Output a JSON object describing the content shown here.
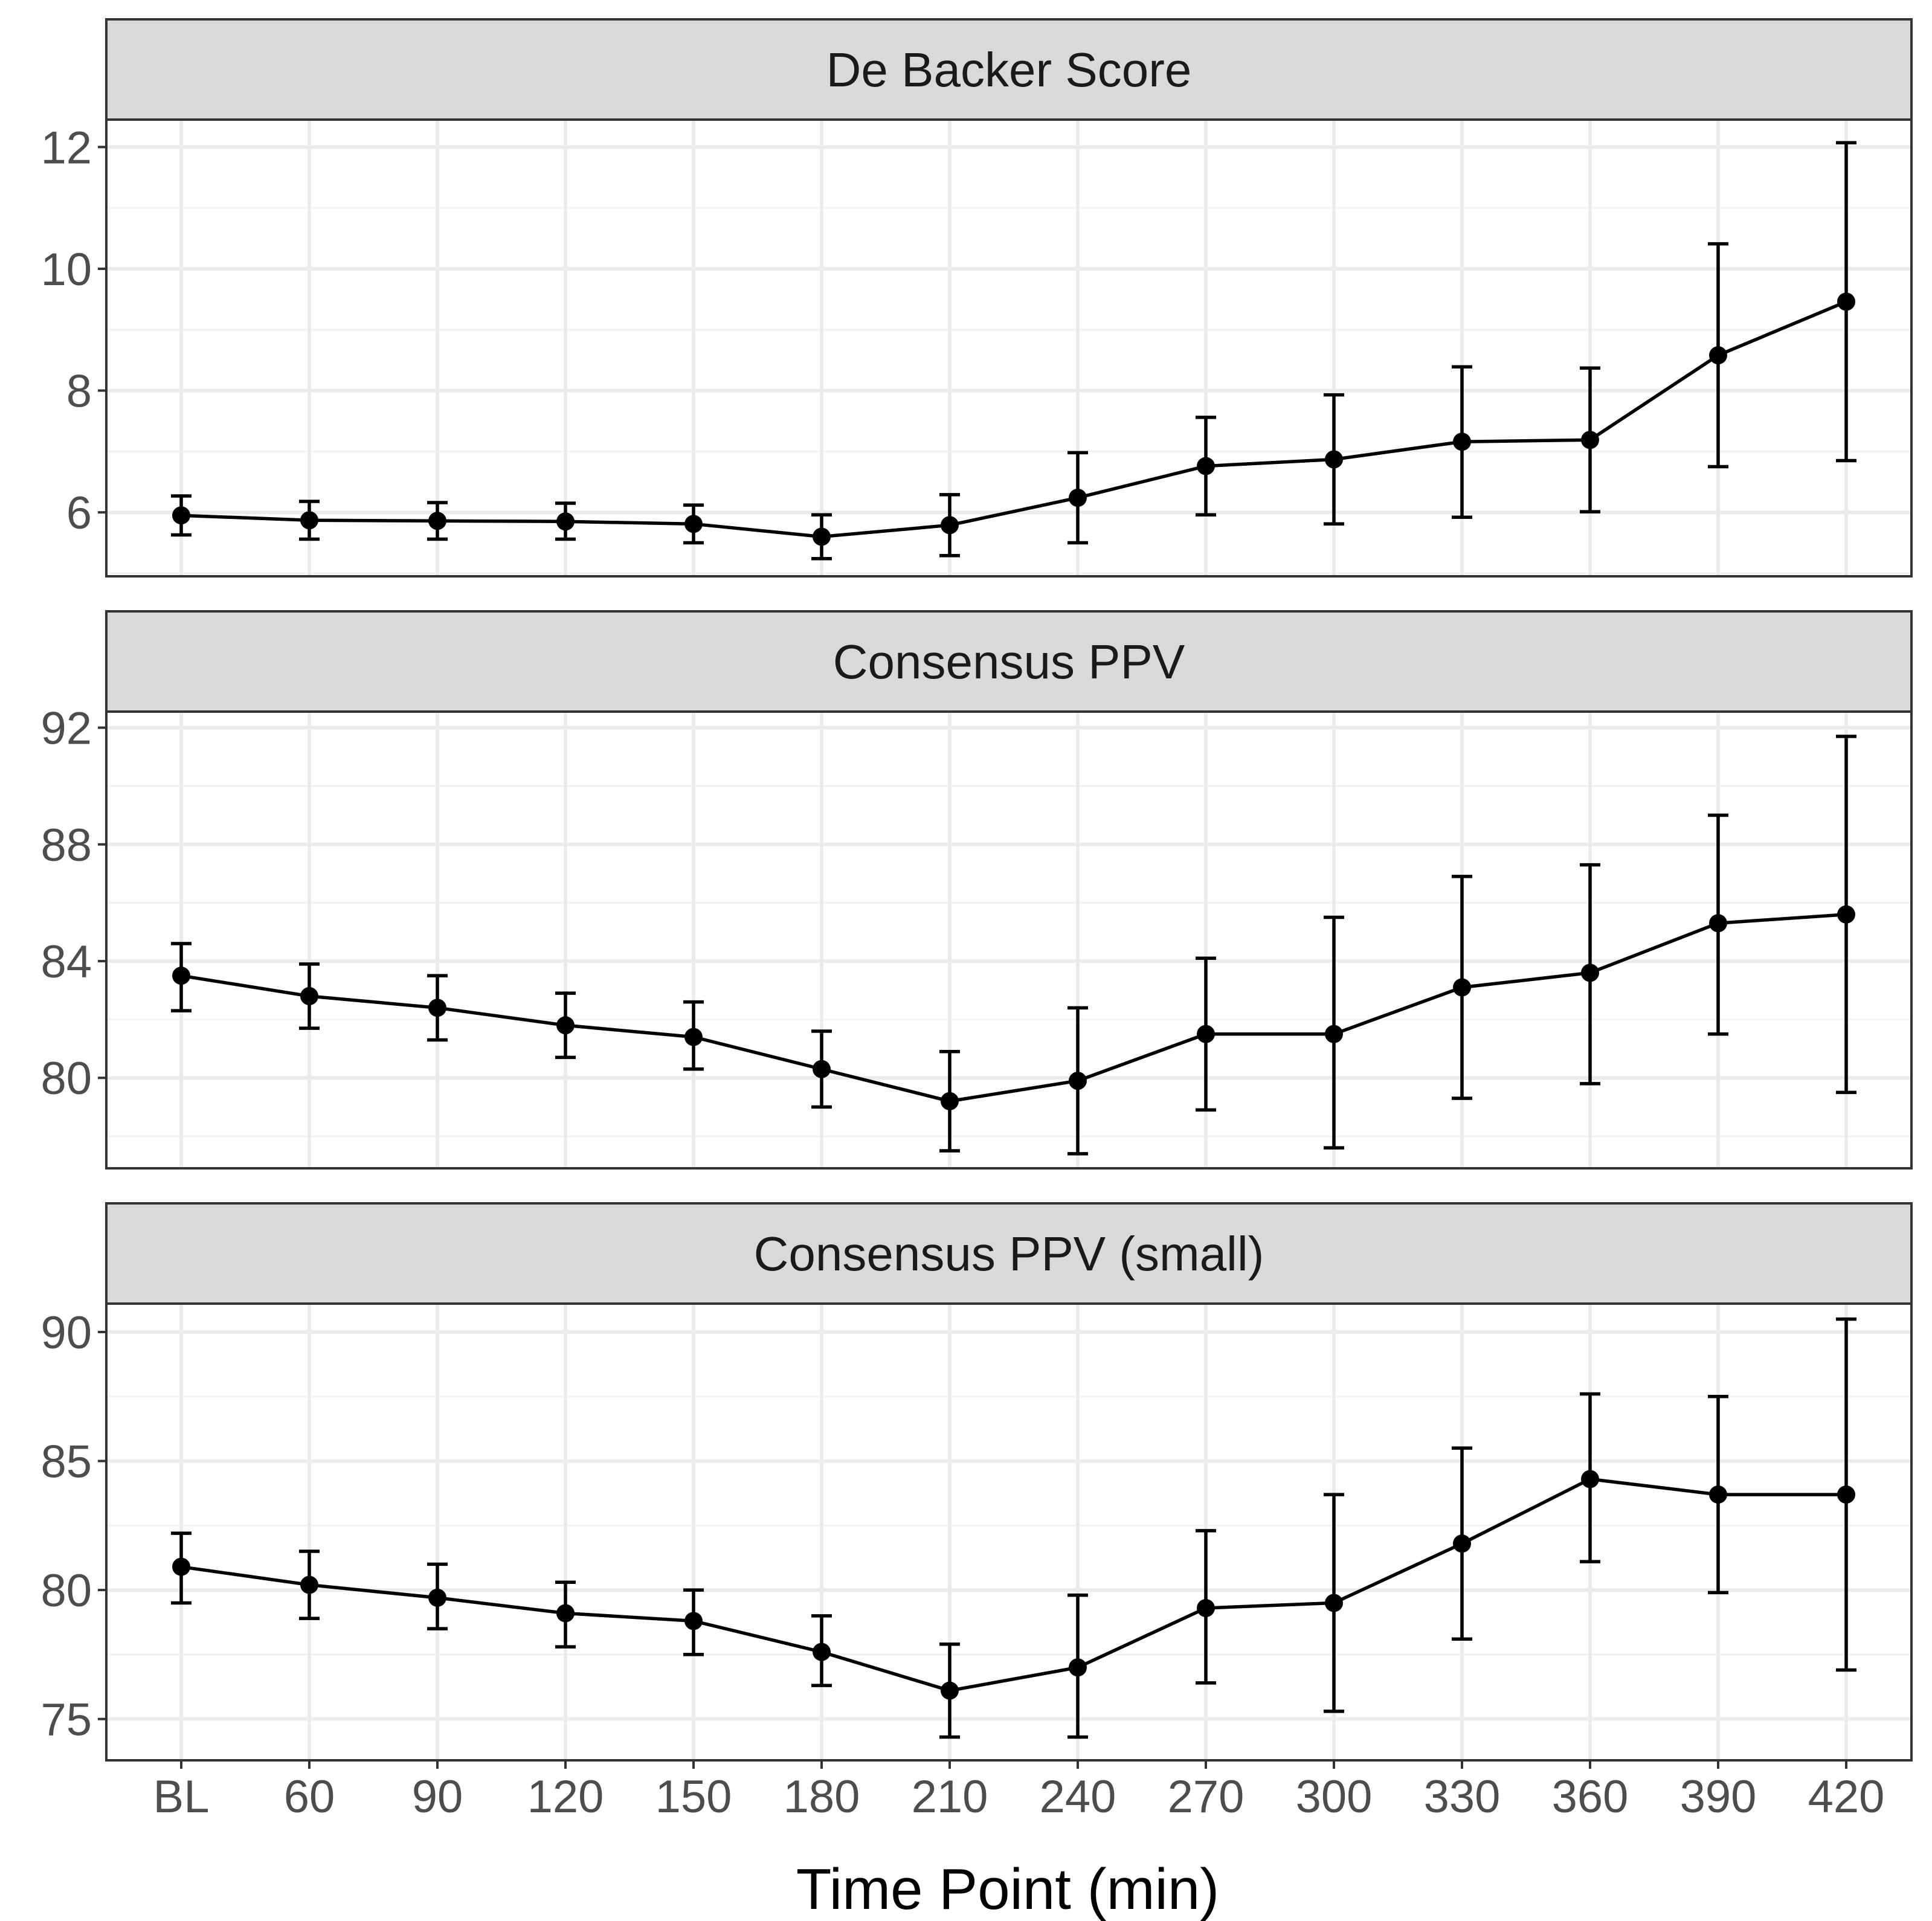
{
  "chart_data": {
    "type": "line",
    "layout": "faceted-vertical",
    "xlabel": "Time Point (min)",
    "categories": [
      "BL",
      "60",
      "90",
      "120",
      "150",
      "180",
      "210",
      "240",
      "270",
      "300",
      "330",
      "360",
      "390",
      "420"
    ],
    "grid": true,
    "legend": "none",
    "colors": {
      "series": "#000000",
      "strip": "#d9d9d9",
      "grid": "#ebebeb",
      "border": "#333333"
    },
    "panels": [
      {
        "title": "De Backer Score",
        "ylim": [
          4.95,
          12.45
        ],
        "yticks": [
          6,
          8,
          10,
          12
        ],
        "values": [
          5.95,
          5.87,
          5.86,
          5.85,
          5.81,
          5.6,
          5.79,
          6.24,
          6.76,
          6.87,
          7.16,
          7.19,
          8.58,
          9.46
        ],
        "lower": [
          5.63,
          5.56,
          5.56,
          5.56,
          5.5,
          5.24,
          5.29,
          5.5,
          5.96,
          5.81,
          5.92,
          6.01,
          6.75,
          6.85
        ],
        "upper": [
          6.27,
          6.18,
          6.16,
          6.15,
          6.12,
          5.96,
          6.29,
          6.98,
          7.56,
          7.93,
          8.39,
          8.37,
          10.41,
          12.07
        ]
      },
      {
        "title": "Consensus PPV",
        "ylim": [
          76.9,
          92.55
        ],
        "yticks": [
          80,
          84,
          88,
          92
        ],
        "values": [
          83.5,
          82.8,
          82.4,
          81.8,
          81.4,
          80.3,
          79.2,
          79.9,
          81.5,
          81.5,
          83.1,
          83.6,
          85.3,
          85.6
        ],
        "lower": [
          82.3,
          81.7,
          81.3,
          80.7,
          80.3,
          79.0,
          77.5,
          77.4,
          78.9,
          77.6,
          79.3,
          79.8,
          81.5,
          79.5
        ],
        "upper": [
          84.6,
          83.9,
          83.5,
          82.9,
          82.6,
          81.6,
          80.9,
          82.4,
          84.1,
          85.5,
          86.9,
          87.3,
          89.0,
          91.7
        ]
      },
      {
        "title": "Consensus PPV (small)",
        "ylim": [
          73.4,
          91.1
        ],
        "yticks": [
          75,
          80,
          85,
          90
        ],
        "values": [
          80.9,
          80.2,
          79.7,
          79.1,
          78.8,
          77.6,
          76.1,
          77.0,
          79.3,
          79.5,
          81.8,
          84.3,
          83.7,
          83.7
        ],
        "lower": [
          79.5,
          78.9,
          78.5,
          77.8,
          77.5,
          76.3,
          74.3,
          74.3,
          76.4,
          75.3,
          78.1,
          81.1,
          79.9,
          76.9
        ],
        "upper": [
          82.2,
          81.5,
          81.0,
          80.3,
          80.0,
          79.0,
          77.9,
          79.8,
          82.3,
          83.7,
          85.5,
          87.6,
          87.5,
          90.5
        ]
      }
    ]
  }
}
